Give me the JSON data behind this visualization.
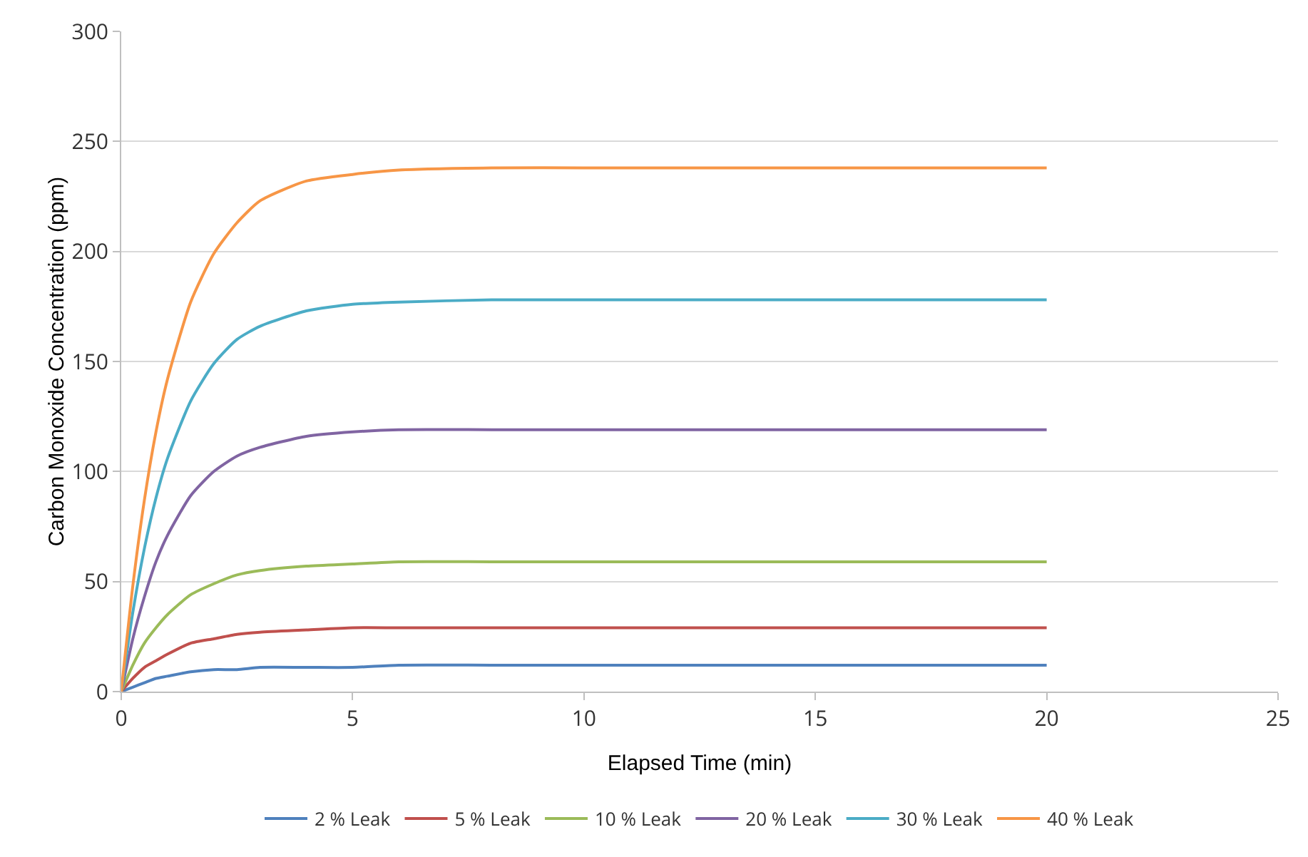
{
  "chart_data": {
    "type": "line",
    "xlabel": "Elapsed Time (min)",
    "ylabel": "Carbon Monoxide Concentration (ppm)",
    "x": [
      0,
      0.25,
      0.5,
      0.75,
      1,
      1.5,
      2,
      2.5,
      3,
      4,
      5,
      6,
      8,
      10,
      15,
      20
    ],
    "series": [
      {
        "name": "2 % Leak",
        "color": "#4f81bd",
        "values": [
          0,
          2,
          4,
          6,
          7,
          9,
          10,
          10,
          11,
          11,
          11,
          12,
          12,
          12,
          12,
          12
        ]
      },
      {
        "name": "5 % Leak",
        "color": "#c0504d",
        "values": [
          0,
          6,
          11,
          14,
          17,
          22,
          24,
          26,
          27,
          28,
          29,
          29,
          29,
          29,
          29,
          29
        ]
      },
      {
        "name": "10 % Leak",
        "color": "#9bbb59",
        "values": [
          0,
          12,
          22,
          29,
          35,
          44,
          49,
          53,
          55,
          57,
          58,
          59,
          59,
          59,
          59,
          59
        ]
      },
      {
        "name": "20 % Leak",
        "color": "#8064a2",
        "values": [
          0,
          24,
          43,
          59,
          71,
          89,
          100,
          107,
          111,
          116,
          118,
          119,
          119,
          119,
          119,
          119
        ]
      },
      {
        "name": "30 % Leak",
        "color": "#4bacc6",
        "values": [
          0,
          36,
          65,
          88,
          106,
          132,
          149,
          160,
          166,
          173,
          176,
          177,
          178,
          178,
          178,
          178
        ]
      },
      {
        "name": "40 % Leak",
        "color": "#f79646",
        "values": [
          0,
          48,
          87,
          118,
          142,
          177,
          199,
          213,
          223,
          232,
          235,
          237,
          238,
          238,
          238,
          238
        ]
      }
    ],
    "xlim": [
      0,
      25
    ],
    "xticks": [
      0,
      5,
      10,
      15,
      20,
      25
    ],
    "ylim": [
      0,
      300
    ],
    "yticks": [
      0,
      50,
      100,
      150,
      200,
      250,
      300
    ],
    "grid": "y",
    "legend": "bottom",
    "marker": "none",
    "line_style": "solid"
  }
}
